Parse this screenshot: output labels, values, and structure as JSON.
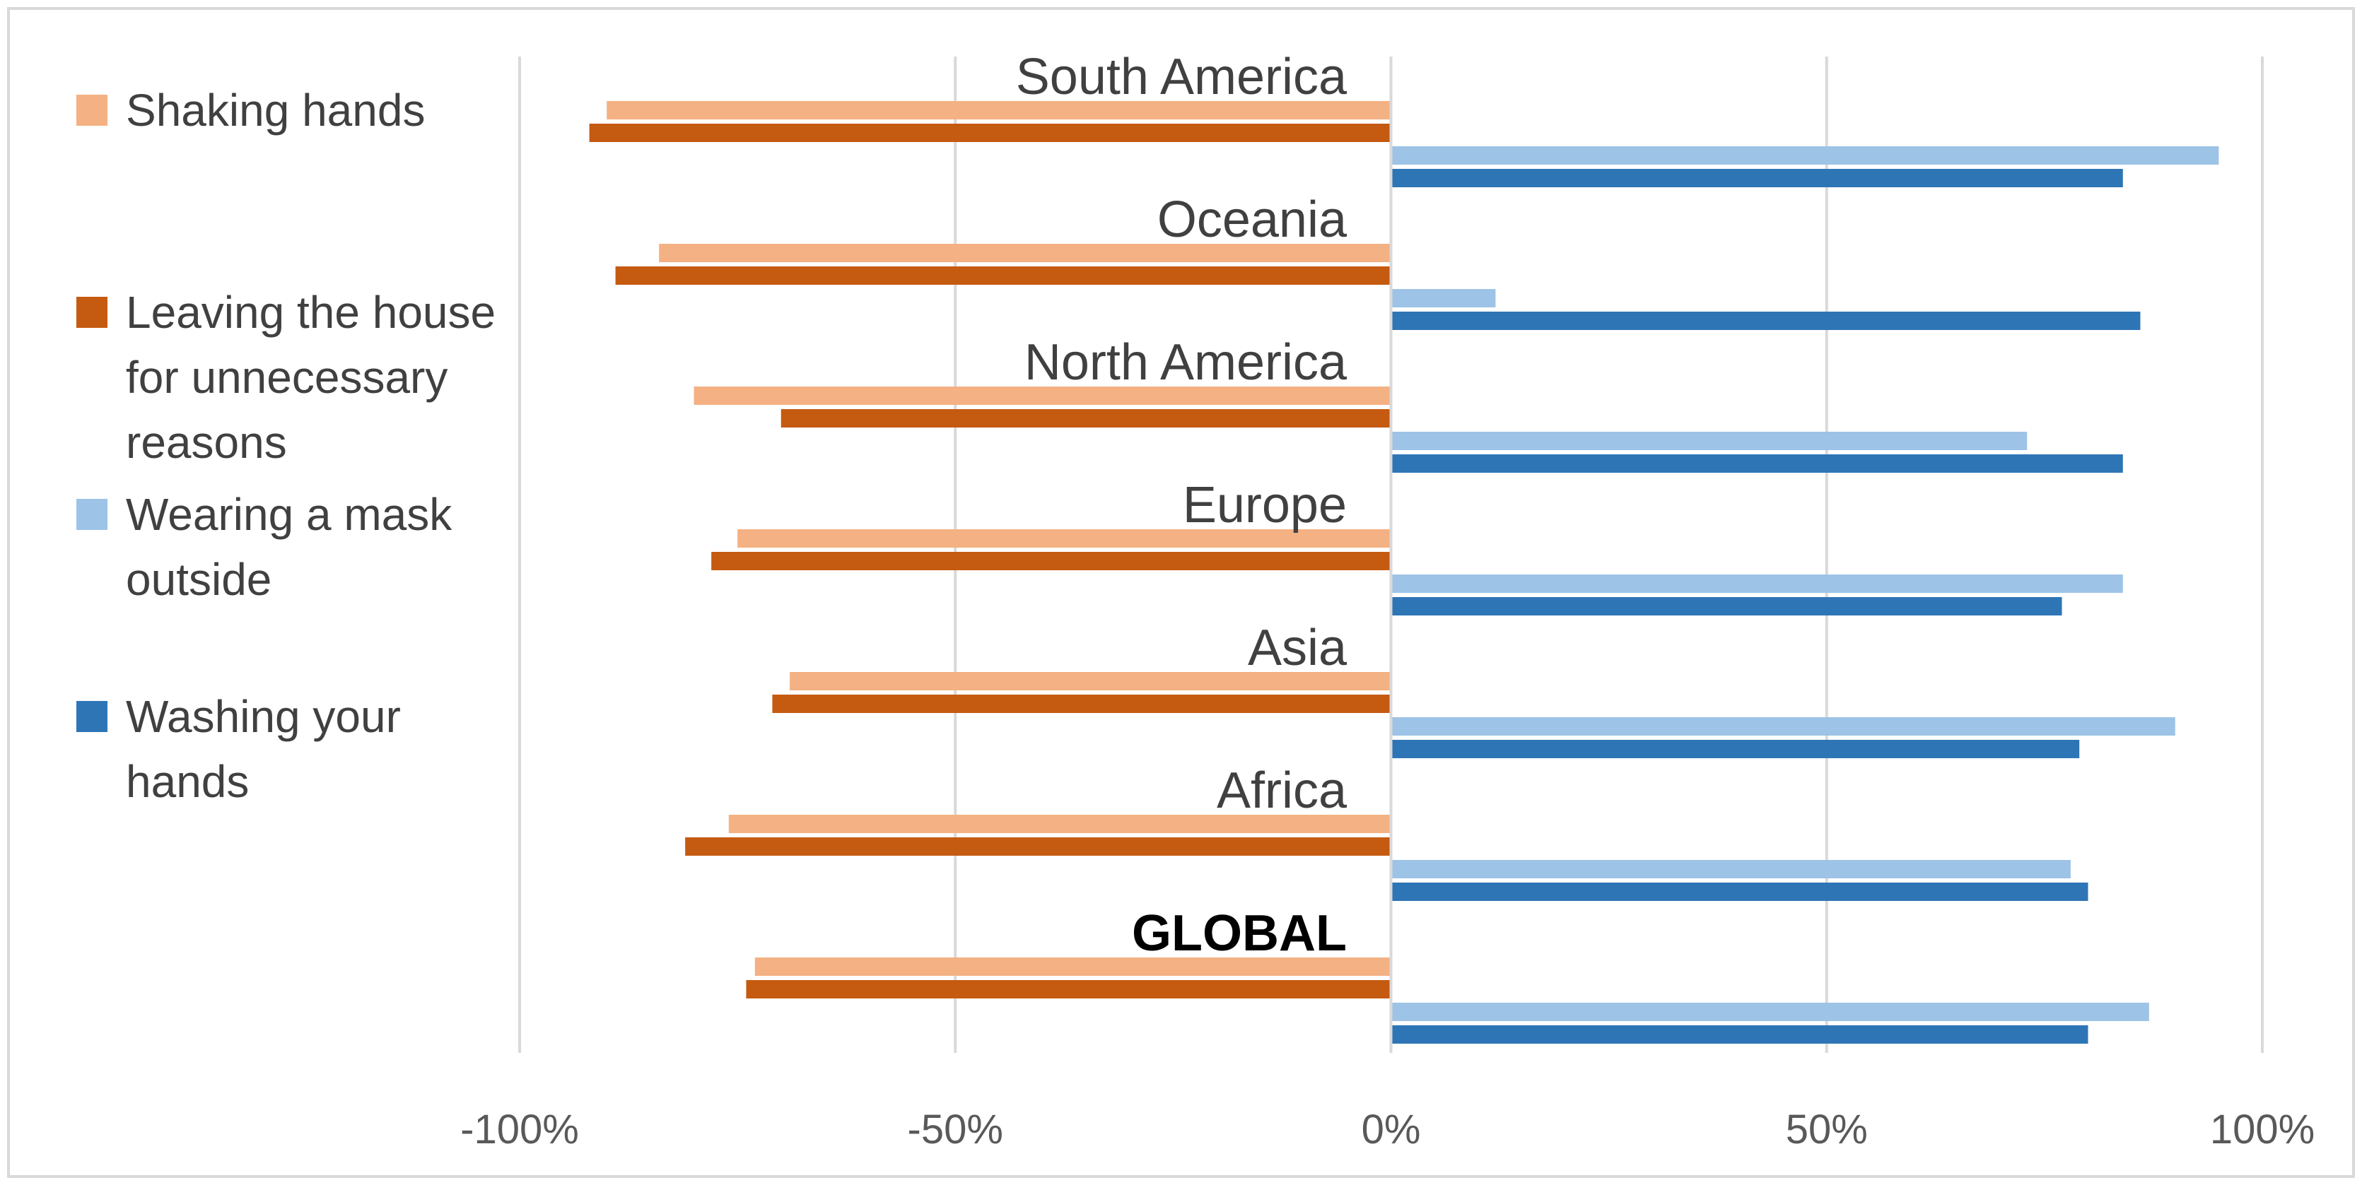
{
  "chart_data": {
    "type": "bar",
    "orientation": "horizontal",
    "categories": [
      "South America",
      "Oceania",
      "North America",
      "Europe",
      "Asia",
      "Africa",
      "GLOBAL"
    ],
    "category_bold": [
      false,
      false,
      false,
      false,
      false,
      false,
      true
    ],
    "series": [
      {
        "name": "Shaking hands",
        "color": "#f4b183",
        "values": [
          -90,
          -84,
          -80,
          -75,
          -69,
          -76,
          -73
        ]
      },
      {
        "name": "Leaving the house for unnecessary reasons",
        "color": "#c55a11",
        "values": [
          -92,
          -89,
          -70,
          -78,
          -71,
          -81,
          -74
        ]
      },
      {
        "name": "Wearing a mask outside",
        "color": "#9dc3e6",
        "values": [
          95,
          12,
          73,
          84,
          90,
          78,
          87
        ]
      },
      {
        "name": "Washing your hands",
        "color": "#2e75b6",
        "values": [
          84,
          86,
          84,
          77,
          79,
          80,
          80
        ]
      }
    ],
    "xlim": [
      -100,
      100
    ],
    "xticks": [
      -100,
      -50,
      0,
      50,
      100
    ],
    "xtick_labels": [
      "-100%",
      "-50%",
      "0%",
      "50%",
      "100%"
    ],
    "grid": true,
    "legend_position": "left",
    "title": "",
    "xlabel": "",
    "ylabel": ""
  },
  "legend": {
    "items": [
      {
        "label_lines": [
          "Shaking hands"
        ],
        "color": "#f4b183"
      },
      {
        "label_lines": [
          "Leaving the house",
          "for unnecessary",
          "reasons"
        ],
        "color": "#c55a11"
      },
      {
        "label_lines": [
          "Wearing a mask",
          "outside"
        ],
        "color": "#9dc3e6"
      },
      {
        "label_lines": [
          "Washing your",
          "hands"
        ],
        "color": "#2e75b6"
      }
    ]
  }
}
